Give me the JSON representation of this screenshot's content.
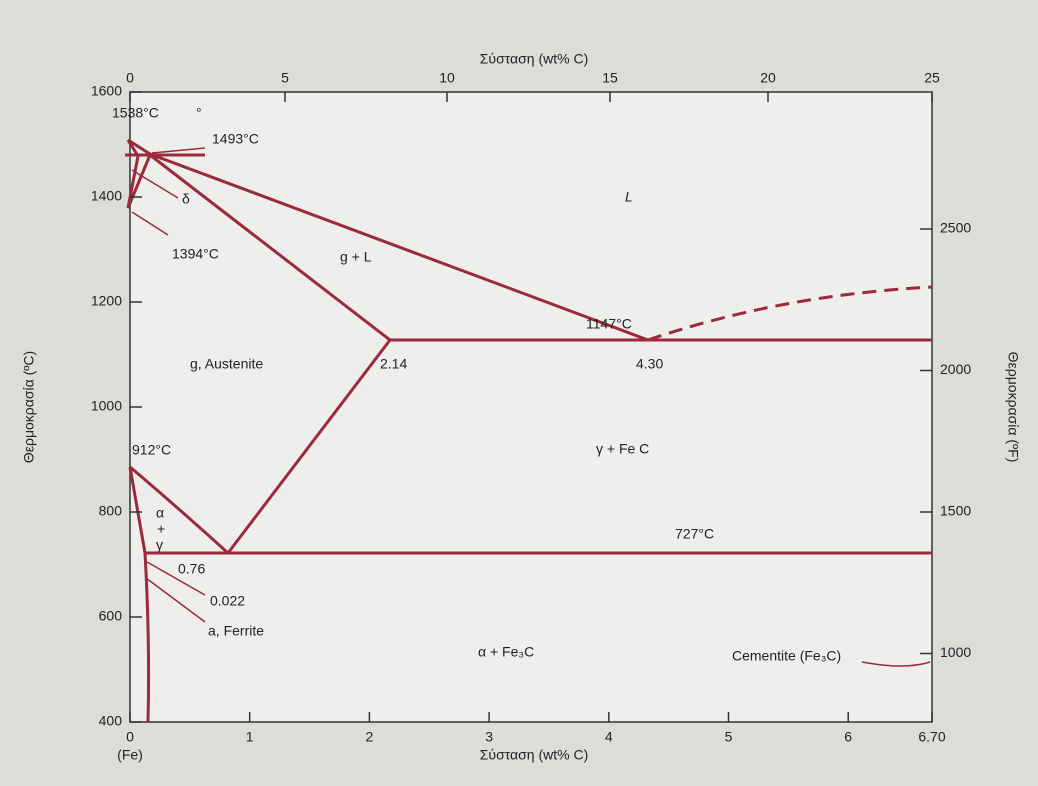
{
  "axes": {
    "top_title": "Σύσταση (wt% C)",
    "bottom_title": "Σύσταση (wt% C)",
    "left_title": "Θερμοκρασία (ºC)",
    "right_title": "Θερμοκρασία (ºF)",
    "top_ticks": [
      0,
      5,
      10,
      15,
      20,
      25
    ],
    "bottom_ticks": [
      0,
      1,
      2,
      3,
      4,
      5,
      6,
      {
        "value": 6.7,
        "label": "6.70"
      }
    ],
    "bottom_note": "(Fe)",
    "left_ticks": [
      400,
      600,
      800,
      1000,
      1200,
      1400,
      1600
    ],
    "right_ticks": [
      1000,
      1500,
      2000,
      2500
    ]
  },
  "labels": {
    "t1538": "1538°C",
    "deg": "°",
    "t1493": "1493°C",
    "delta": "δ",
    "t1394": "1394°C",
    "liquid": "L",
    "g_l": "g + L",
    "t1147": "1147°C",
    "c214": "2.14",
    "c430": "4.30",
    "austenite": "g, Austenite",
    "gamma_fe3c": "γ + Fe C",
    "t912": "912°C",
    "alpha": "α",
    "plus": "+",
    "gamma": "γ",
    "t727": "727°C",
    "c076": "0.76",
    "c0022": "0.022",
    "ferrite": "a, Ferrite",
    "alpha_fe3c": "α + Fe₃C",
    "cementite": "Cementite (Fe₃C)"
  }
}
